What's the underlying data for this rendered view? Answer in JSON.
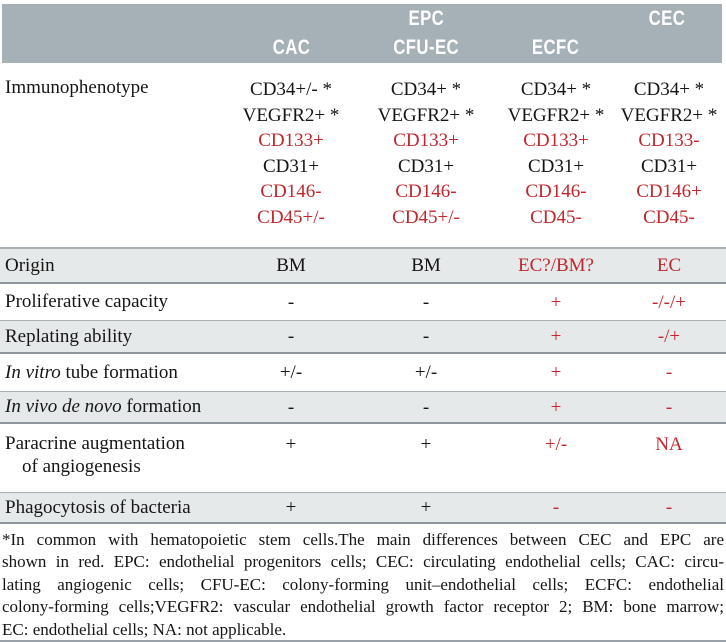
{
  "palette": {
    "header_bg": "#a5b0b7",
    "shaded_row_bg": "#e6e9ea",
    "rule_dark": "#8d969d",
    "rule_light": "#a9b1b7",
    "highlight_red": "#c1272d",
    "text": "#151515",
    "header_text": "#ffffff"
  },
  "header": {
    "epc_group": "EPC",
    "cec": "CEC",
    "subcolumns": [
      "CAC",
      "CFU-EC",
      "ECFC"
    ]
  },
  "immunophenotype": {
    "label": "Immunophenotype",
    "cac": [
      "CD34+/- *",
      "VEGFR2+ *",
      "CD133+",
      "CD31+",
      "CD146-",
      "CD45+/-"
    ],
    "cfu_ec": [
      "CD34+ *",
      "VEGFR2+ *",
      "CD133+",
      "CD31+",
      "CD146-",
      "CD45+/-"
    ],
    "ecfc": [
      "CD34+ *",
      "VEGFR2+ *",
      "CD133+",
      "CD31+",
      "CD146-",
      "CD45-"
    ],
    "cec": [
      "CD34+ *",
      "VEGFR2+ *",
      "CD133-",
      "CD31+",
      "CD146+",
      "CD45-"
    ]
  },
  "rows": [
    {
      "label": "Origin",
      "values": [
        "BM",
        "BM",
        "EC?/BM?",
        "EC"
      ]
    },
    {
      "label": "Proliferative capacity",
      "values": [
        "-",
        "-",
        "+",
        "-/-/+"
      ]
    },
    {
      "label": "Replating ability",
      "values": [
        "-",
        "-",
        "+",
        "-/+"
      ]
    },
    {
      "label_italic": "In vitro",
      "label_rest": " tube formation",
      "values": [
        "+/-",
        "+/-",
        "+",
        "-"
      ]
    },
    {
      "label_italic": "In vivo de novo",
      "label_rest": " formation",
      "values": [
        "-",
        "-",
        "+",
        "-"
      ]
    },
    {
      "label_line1": "Paracrine augmentation",
      "label_line2": "of angiogenesis",
      "values": [
        "+",
        "+",
        "+/-",
        "NA"
      ]
    },
    {
      "label": "Phagocytosis of bacteria",
      "values": [
        "+",
        "+",
        "-",
        "-"
      ]
    }
  ],
  "footnote": {
    "lines": [
      "*In common with hematopoietic stem cells.The main differences between CEC and EPC are",
      "shown in red. EPC: endothelial progenitors cells; CEC: circulating endothelial cells; CAC: circu-",
      "lating angiogenic cells; CFU-EC: colony-forming unit–endothelial cells; ECFC: endothelial",
      "colony-forming cells;VEGFR2: vascular endothelial growth factor receptor 2; BM: bone marrow;",
      "EC: endothelial cells; NA: not applicable."
    ]
  }
}
